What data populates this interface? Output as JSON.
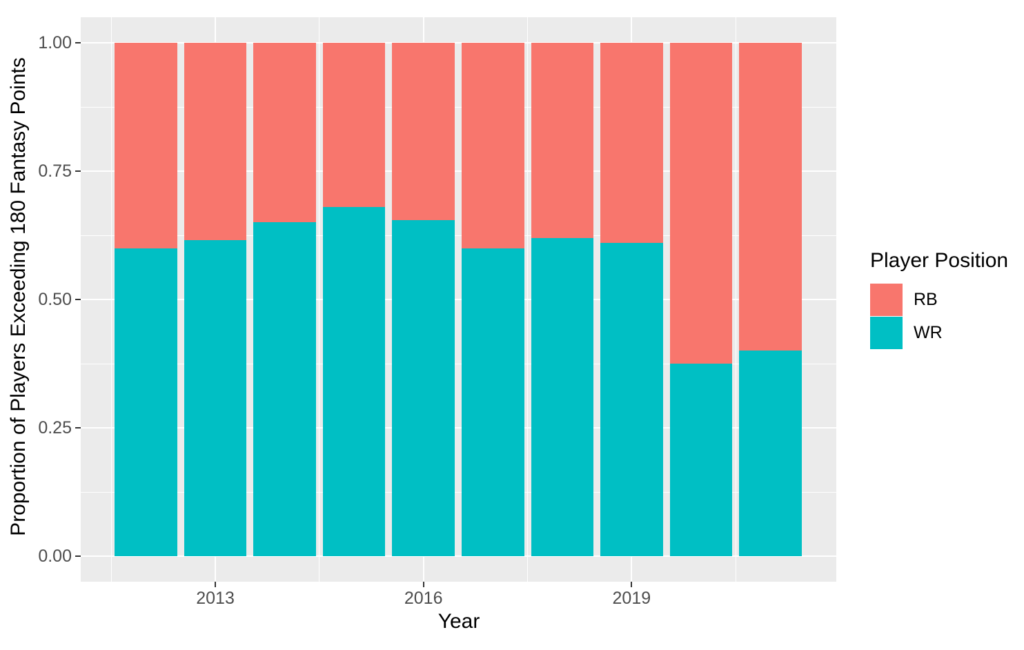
{
  "chart_data": {
    "type": "bar",
    "stacked": true,
    "orientation": "vertical",
    "title": "",
    "xlabel": "Year",
    "ylabel": "Proportion of Players Exceeding 180 Fantasy Points",
    "categories": [
      "2012",
      "2013",
      "2014",
      "2015",
      "2016",
      "2017",
      "2018",
      "2019",
      "2020",
      "2021"
    ],
    "series": [
      {
        "name": "RB",
        "color": "#F8766D",
        "values": [
          0.4,
          0.385,
          0.35,
          0.32,
          0.345,
          0.4,
          0.38,
          0.39,
          0.625,
          0.6
        ]
      },
      {
        "name": "WR",
        "color": "#00BFC4",
        "values": [
          0.6,
          0.615,
          0.65,
          0.68,
          0.655,
          0.6,
          0.62,
          0.61,
          0.375,
          0.4
        ]
      }
    ],
    "ylim": [
      0,
      1
    ],
    "y_ticks": [
      {
        "label": "0.00",
        "value": 0.0
      },
      {
        "label": "0.25",
        "value": 0.25
      },
      {
        "label": "0.50",
        "value": 0.5
      },
      {
        "label": "0.75",
        "value": 0.75
      },
      {
        "label": "1.00",
        "value": 1.0
      }
    ],
    "y_minor_gridlines": [
      0.125,
      0.375,
      0.625,
      0.875
    ],
    "x_ticks": [
      {
        "label": "2013",
        "category": "2013"
      },
      {
        "label": "2016",
        "category": "2016"
      },
      {
        "label": "2019",
        "category": "2019"
      }
    ],
    "x_minor_gridline_categories": [
      "2011.5",
      "2014.5",
      "2017.5",
      "2020.5"
    ],
    "legend": {
      "title": "Player Position",
      "position": "right",
      "entries": [
        {
          "label": "RB",
          "color": "#F8766D"
        },
        {
          "label": "WR",
          "color": "#00BFC4"
        }
      ]
    },
    "style": {
      "panel_background": "#EBEBEB",
      "gridline_color": "#FFFFFF",
      "tick_color": "#333333",
      "tick_label_color": "#4D4D4D",
      "axis_title_color": "#000000"
    }
  }
}
